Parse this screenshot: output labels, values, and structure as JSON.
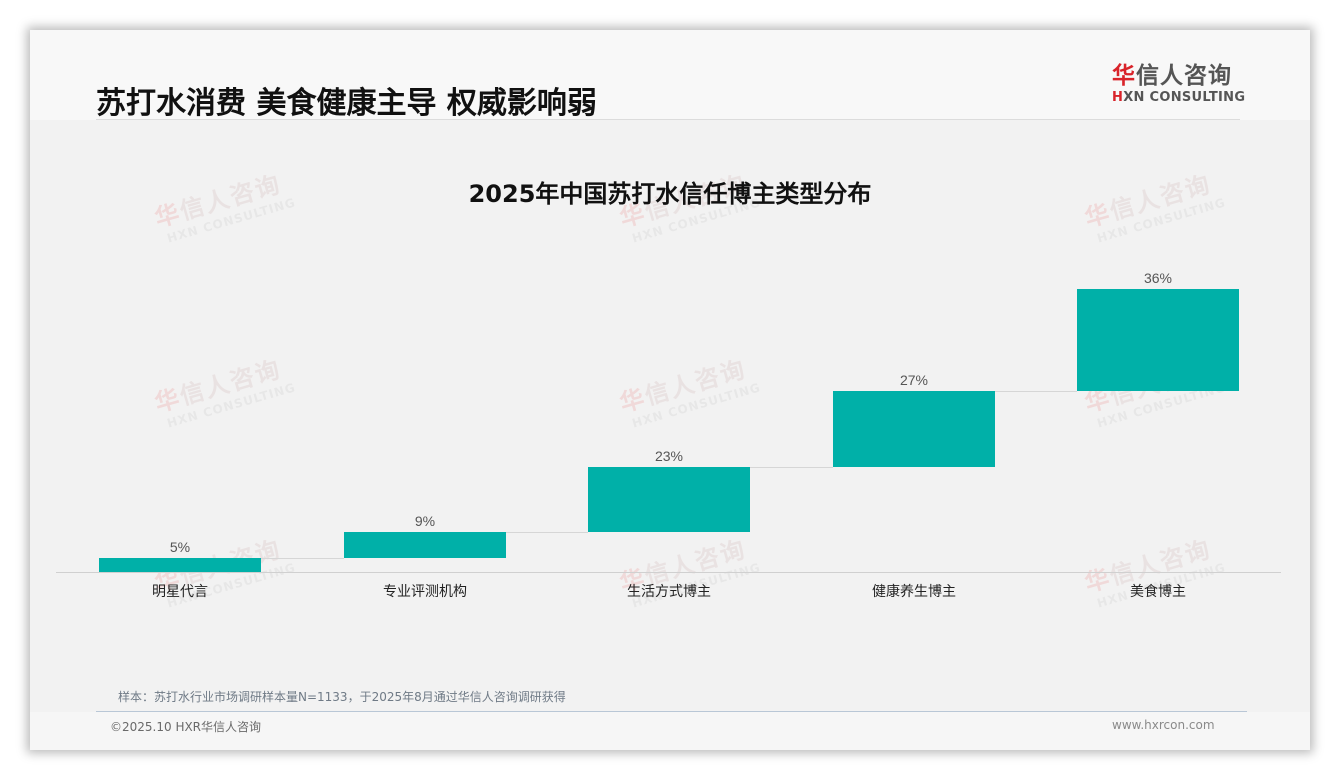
{
  "header": {
    "title": "苏打水消费 美食健康主导 权威影响弱",
    "logo": {
      "cn_first": "华",
      "cn_rest": "信人咨询",
      "en_first": "H",
      "en_rest": "XN CONSULTING"
    }
  },
  "watermark": {
    "cn_first": "华",
    "cn_rest": "信人咨询",
    "en": "HXN CONSULTING"
  },
  "colors": {
    "bar": "#00b0a8",
    "brand_red": "#d9232a"
  },
  "chart_data": {
    "type": "bar",
    "subtype": "waterfall",
    "title": "2025年中国苏打水信任博主类型分布",
    "categories": [
      "明星代言",
      "专业评测机构",
      "生活方式博主",
      "健康养生博主",
      "美食博主"
    ],
    "values": [
      5,
      9,
      23,
      27,
      36
    ],
    "value_labels": [
      "5%",
      "9%",
      "23%",
      "27%",
      "36%"
    ],
    "unit": "%",
    "xlabel": "",
    "ylabel": "",
    "ylim": [
      0,
      100
    ],
    "grid": false,
    "legend": "none",
    "connectors": true
  },
  "footer": {
    "note": "样本：苏打水行业市场调研样本量N=1133，于2025年8月通过华信人咨询调研获得",
    "copyright": "©2025.10 HXR华信人咨询",
    "website": "www.hxrcon.com"
  }
}
